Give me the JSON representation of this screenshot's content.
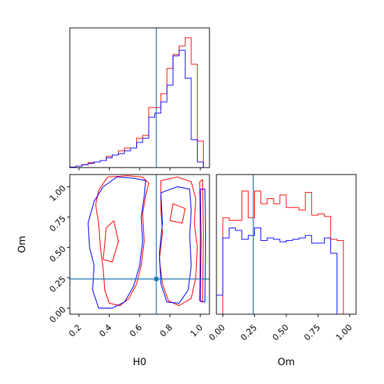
{
  "chart_data": {
    "type": "corner",
    "truth": {
      "H0": 0.71,
      "Om": 0.24
    },
    "series": [
      {
        "color": "#ff0000"
      },
      {
        "color": "#0000ff"
      }
    ],
    "truth_color": "#1f77b4",
    "panels": [
      {
        "id": "hist-H0",
        "type": "step-histogram",
        "xlim": [
          0.14,
          1.06
        ],
        "x_ticks": [
          0.2,
          0.4,
          0.6,
          0.8,
          1.0
        ],
        "bin_edges": [
          0.1,
          0.14,
          0.18,
          0.22,
          0.26,
          0.3,
          0.34,
          0.38,
          0.42,
          0.46,
          0.5,
          0.54,
          0.58,
          0.62,
          0.66,
          0.7,
          0.74,
          0.78,
          0.82,
          0.86,
          0.9,
          0.94,
          0.98,
          1.02,
          1.06
        ],
        "series_values": [
          [
            0.0,
            0.003,
            0.01,
            0.022,
            0.035,
            0.04,
            0.05,
            0.08,
            0.09,
            0.12,
            0.14,
            0.14,
            0.21,
            0.23,
            0.43,
            0.43,
            0.53,
            0.71,
            0.81,
            0.87,
            0.93,
            0.74,
            0.19,
            0.0
          ],
          [
            0.0,
            0.003,
            0.01,
            0.02,
            0.03,
            0.04,
            0.05,
            0.07,
            0.09,
            0.1,
            0.12,
            0.14,
            0.18,
            0.21,
            0.36,
            0.39,
            0.47,
            0.59,
            0.8,
            0.84,
            0.64,
            0.2,
            0.04,
            0.0
          ]
        ],
        "ylim": [
          0,
          1.0
        ]
      },
      {
        "id": "hist-Om",
        "type": "step-histogram",
        "xlim": [
          -0.05,
          1.05
        ],
        "x_ticks": [
          0.0,
          0.25,
          0.5,
          0.75,
          1.0
        ],
        "x_tick_labels": [
          "0.00",
          "0.25",
          "0.50",
          "0.75",
          "1.00"
        ],
        "bin_edges": [
          -0.05,
          0.0,
          0.05,
          0.1,
          0.15,
          0.2,
          0.25,
          0.3,
          0.35,
          0.4,
          0.45,
          0.5,
          0.55,
          0.6,
          0.65,
          0.7,
          0.75,
          0.8,
          0.85,
          0.9,
          0.95,
          1.0,
          1.05
        ],
        "series_values": [
          [
            0.0,
            0.76,
            0.74,
            0.74,
            0.97,
            0.76,
            0.97,
            0.87,
            0.91,
            0.87,
            0.94,
            0.84,
            0.84,
            0.82,
            0.96,
            0.78,
            0.79,
            0.77,
            0.59,
            0.58,
            0.0,
            0.0
          ],
          [
            0.15,
            0.6,
            0.68,
            0.66,
            0.59,
            0.62,
            0.68,
            0.58,
            0.6,
            0.59,
            0.57,
            0.58,
            0.59,
            0.6,
            0.62,
            0.56,
            0.56,
            0.6,
            0.48,
            0.0,
            0.0,
            0.0
          ]
        ],
        "ylim": [
          0,
          1.1
        ]
      },
      {
        "id": "contour-H0-Om",
        "type": "contour",
        "xlabel": "H0",
        "ylabel": "Om",
        "xlim": [
          0.14,
          1.06
        ],
        "ylim": [
          -0.05,
          1.1
        ],
        "x_ticks": [
          0.2,
          0.4,
          0.6,
          0.8,
          1.0
        ],
        "y_ticks": [
          0.0,
          0.25,
          0.5,
          0.75,
          1.0
        ],
        "y_tick_labels": [
          "0.00",
          "0.25",
          "0.50",
          "0.75",
          "1.00"
        ],
        "contours": [
          {
            "series": 0,
            "paths": [
              [
                [
                  0.39,
                  1.08
                ],
                [
                  0.52,
                  1.09
                ],
                [
                  0.62,
                  1.08
                ],
                [
                  0.66,
                  1.03
                ],
                [
                  0.64,
                  0.93
                ],
                [
                  0.62,
                  0.78
                ],
                [
                  0.63,
                  0.55
                ],
                [
                  0.61,
                  0.35
                ],
                [
                  0.58,
                  0.2
                ],
                [
                  0.53,
                  0.08
                ],
                [
                  0.47,
                  0.02
                ],
                [
                  0.4,
                  0.04
                ],
                [
                  0.37,
                  0.15
                ],
                [
                  0.36,
                  0.32
                ],
                [
                  0.34,
                  0.52
                ],
                [
                  0.33,
                  0.7
                ],
                [
                  0.31,
                  0.85
                ],
                [
                  0.33,
                  0.97
                ],
                [
                  0.39,
                  1.08
                ]
              ],
              [
                [
                  0.36,
                  0.4
                ],
                [
                  0.42,
                  0.38
                ],
                [
                  0.46,
                  0.55
                ],
                [
                  0.43,
                  0.72
                ],
                [
                  0.38,
                  0.66
                ],
                [
                  0.36,
                  0.4
                ]
              ],
              [
                [
                  0.74,
                  1.05
                ],
                [
                  0.85,
                  1.08
                ],
                [
                  0.94,
                  1.04
                ],
                [
                  0.97,
                  0.9
                ],
                [
                  0.96,
                  0.7
                ],
                [
                  0.98,
                  0.5
                ],
                [
                  0.97,
                  0.25
                ],
                [
                  0.94,
                  0.08
                ],
                [
                  0.86,
                  0.02
                ],
                [
                  0.79,
                  0.06
                ],
                [
                  0.75,
                  0.2
                ],
                [
                  0.73,
                  0.4
                ],
                [
                  0.75,
                  0.62
                ],
                [
                  0.74,
                  0.82
                ],
                [
                  0.74,
                  1.05
                ]
              ],
              [
                [
                  0.8,
                  0.72
                ],
                [
                  0.88,
                  0.7
                ],
                [
                  0.9,
                  0.82
                ],
                [
                  0.82,
                  0.86
                ],
                [
                  0.8,
                  0.72
                ]
              ],
              [
                [
                  0.995,
                  1.04
                ],
                [
                  1.015,
                  1.06
                ],
                [
                  1.02,
                  0.6
                ],
                [
                  1.015,
                  0.05
                ],
                [
                  0.995,
                  0.06
                ],
                [
                  1.0,
                  0.6
                ],
                [
                  0.995,
                  1.04
                ]
              ]
            ]
          },
          {
            "series": 1,
            "paths": [
              [
                [
                  0.36,
                  1.0
                ],
                [
                  0.45,
                  1.08
                ],
                [
                  0.56,
                  1.07
                ],
                [
                  0.64,
                  1.05
                ],
                [
                  0.63,
                  0.92
                ],
                [
                  0.61,
                  0.75
                ],
                [
                  0.62,
                  0.55
                ],
                [
                  0.6,
                  0.35
                ],
                [
                  0.56,
                  0.18
                ],
                [
                  0.5,
                  0.05
                ],
                [
                  0.42,
                  0.0
                ],
                [
                  0.33,
                  0.0
                ],
                [
                  0.29,
                  0.15
                ],
                [
                  0.3,
                  0.35
                ],
                [
                  0.27,
                  0.5
                ],
                [
                  0.26,
                  0.7
                ],
                [
                  0.3,
                  0.88
                ],
                [
                  0.36,
                  1.0
                ]
              ],
              [
                [
                  0.74,
                  0.95
                ],
                [
                  0.85,
                  1.0
                ],
                [
                  0.93,
                  0.98
                ],
                [
                  0.94,
                  0.8
                ],
                [
                  0.93,
                  0.6
                ],
                [
                  0.94,
                  0.35
                ],
                [
                  0.92,
                  0.15
                ],
                [
                  0.86,
                  0.04
                ],
                [
                  0.78,
                  0.05
                ],
                [
                  0.74,
                  0.2
                ],
                [
                  0.73,
                  0.45
                ],
                [
                  0.75,
                  0.7
                ],
                [
                  0.74,
                  0.95
                ]
              ],
              [
                [
                  1.0,
                  0.98
                ],
                [
                  1.03,
                  0.98
                ],
                [
                  1.035,
                  0.6
                ],
                [
                  1.03,
                  0.05
                ],
                [
                  1.0,
                  0.06
                ],
                [
                  1.005,
                  0.55
                ],
                [
                  1.0,
                  0.98
                ]
              ]
            ]
          }
        ]
      }
    ]
  }
}
